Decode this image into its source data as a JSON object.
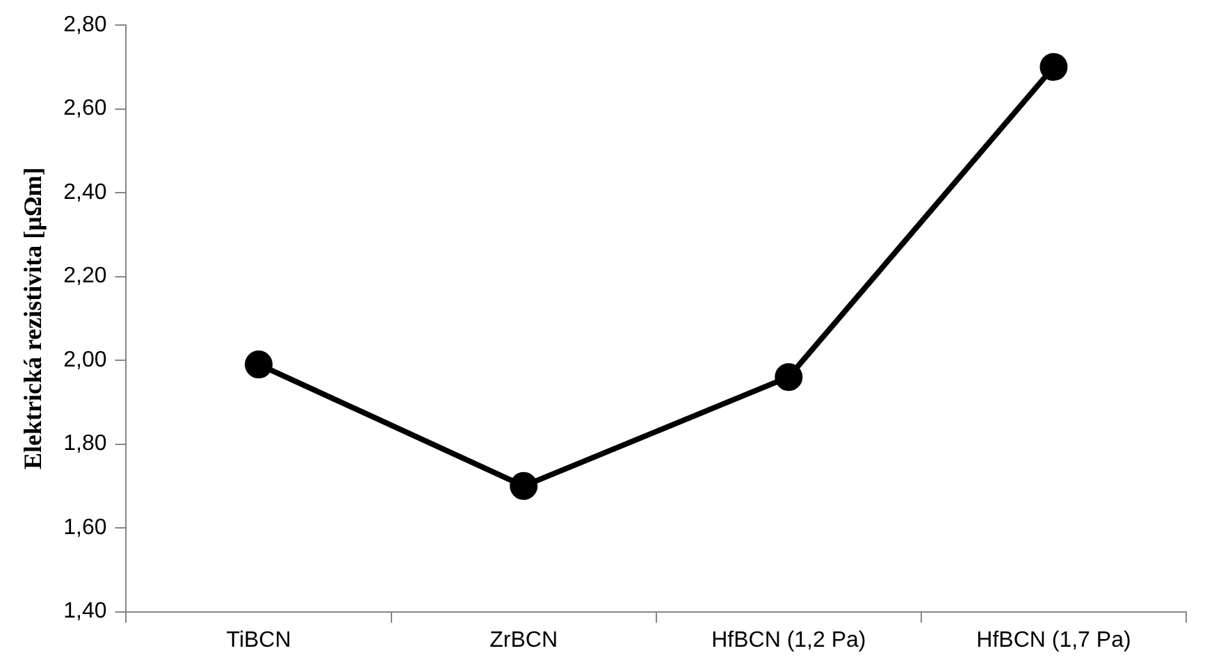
{
  "chart_data": {
    "type": "line",
    "ylabel": "Elektrická rezistivita [μΩm]",
    "categories": [
      "TiBCN",
      "ZrBCN",
      "HfBCN (1,2 Pa)",
      "HfBCN (1,7 Pa)"
    ],
    "series": [
      {
        "color": "#000000",
        "values": [
          1.99,
          1.7,
          1.96,
          2.7
        ]
      }
    ],
    "ylim": [
      1.4,
      2.8
    ],
    "yticks": [
      {
        "value": 1.4,
        "label": "1,40"
      },
      {
        "value": 1.6,
        "label": "1,60"
      },
      {
        "value": 1.8,
        "label": "1,80"
      },
      {
        "value": 2.0,
        "label": "2,00"
      },
      {
        "value": 2.2,
        "label": "2,20"
      },
      {
        "value": 2.4,
        "label": "2,40"
      },
      {
        "value": 2.6,
        "label": "2,60"
      },
      {
        "value": 2.8,
        "label": "2,80"
      }
    ],
    "grid": false,
    "legend": false,
    "marker": "circle",
    "line_style": "solid"
  }
}
